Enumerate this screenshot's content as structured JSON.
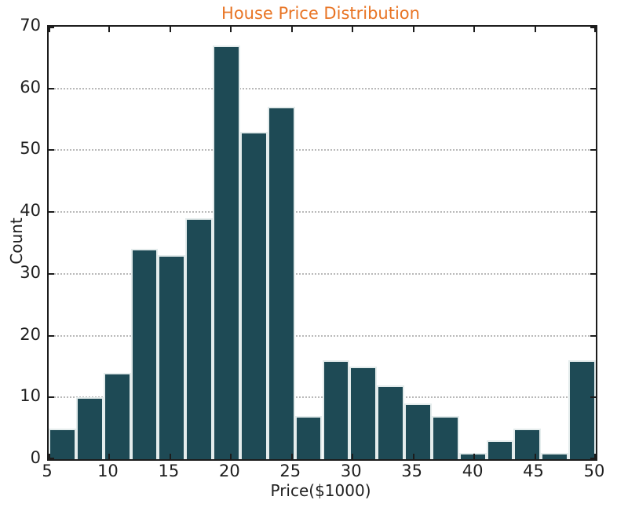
{
  "figure": {
    "background": "#ffffff"
  },
  "chart_data": {
    "type": "bar",
    "subtype": "histogram",
    "title": "House Price Distribution",
    "title_color": "#e87424",
    "xlabel": "Price($1000)",
    "ylabel": "Count",
    "xlim": [
      5,
      50
    ],
    "ylim": [
      0,
      70
    ],
    "xticks": [
      5,
      10,
      15,
      20,
      25,
      30,
      35,
      40,
      45,
      50
    ],
    "yticks": [
      0,
      10,
      20,
      30,
      40,
      50,
      60,
      70
    ],
    "grid": "horizontal-dotted",
    "legend": "none",
    "bin_edges": [
      5,
      7.25,
      9.5,
      11.75,
      14,
      16.25,
      18.5,
      20.75,
      23,
      25.25,
      27.5,
      29.75,
      32,
      34.25,
      36.5,
      38.75,
      41,
      43.25,
      45.5,
      47.75,
      50
    ],
    "values": [
      5,
      10,
      14,
      34,
      33,
      39,
      67,
      53,
      57,
      7,
      16,
      15,
      12,
      9,
      7,
      1,
      3,
      5,
      1,
      16
    ],
    "bar_color": "#1e4a55",
    "bar_edge_color": "#e4ecec",
    "axis_color": "#1c1c1c",
    "grid_color": "#b9b9b9",
    "text_color": "#1f1f1f"
  }
}
